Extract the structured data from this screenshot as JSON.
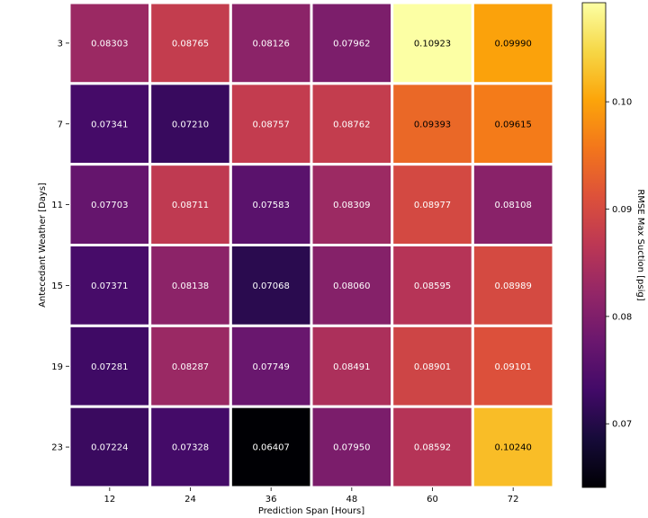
{
  "chart_data": {
    "type": "heatmap",
    "title": "",
    "xlabel": "Prediction Span [Hours]",
    "ylabel": "Antecedant Weather [Days]",
    "x": [
      "12",
      "24",
      "36",
      "48",
      "60",
      "72"
    ],
    "y": [
      "3",
      "7",
      "11",
      "15",
      "19",
      "23"
    ],
    "values": [
      [
        0.08303,
        0.08765,
        0.08126,
        0.07962,
        0.10923,
        0.0999
      ],
      [
        0.07341,
        0.0721,
        0.08757,
        0.08762,
        0.09393,
        0.09615
      ],
      [
        0.07703,
        0.08711,
        0.07583,
        0.08309,
        0.08977,
        0.08108
      ],
      [
        0.07371,
        0.08138,
        0.07068,
        0.0806,
        0.08595,
        0.08989
      ],
      [
        0.07281,
        0.08287,
        0.07749,
        0.08491,
        0.08901,
        0.09101
      ],
      [
        0.07224,
        0.07328,
        0.06407,
        0.0795,
        0.08592,
        0.1024
      ]
    ],
    "value_labels": [
      [
        "0.08303",
        "0.08765",
        "0.08126",
        "0.07962",
        "0.10923",
        "0.09990"
      ],
      [
        "0.07341",
        "0.07210",
        "0.08757",
        "0.08762",
        "0.09393",
        "0.09615"
      ],
      [
        "0.07703",
        "0.08711",
        "0.07583",
        "0.08309",
        "0.08977",
        "0.08108"
      ],
      [
        "0.07371",
        "0.08138",
        "0.07068",
        "0.08060",
        "0.08595",
        "0.08989"
      ],
      [
        "0.07281",
        "0.08287",
        "0.07749",
        "0.08491",
        "0.08901",
        "0.09101"
      ],
      [
        "0.07224",
        "0.07328",
        "0.06407",
        "0.07950",
        "0.08592",
        "0.10240"
      ]
    ],
    "colormap": "inferno",
    "colorbar": {
      "label": "RMSE Max Suction [psig]",
      "vmin": 0.06407,
      "vmax": 0.10923,
      "ticks": [
        0.07,
        0.08,
        0.09,
        0.1
      ],
      "tick_labels": [
        "0.07",
        "0.08",
        "0.09",
        "0.10"
      ]
    },
    "cell_separator_color": "#ffffff",
    "text_color_dark": "#000000",
    "text_color_light": "#ffffff",
    "grid": false,
    "legend": "none"
  }
}
